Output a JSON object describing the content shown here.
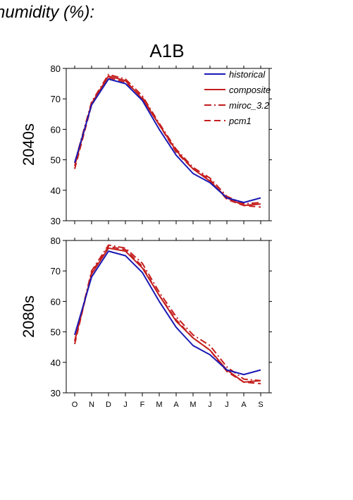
{
  "page": {
    "title": "humidity (%):"
  },
  "chart_data": [
    {
      "type": "line",
      "scenario": "A1B",
      "panel_label": "2040s",
      "categories": [
        "O",
        "N",
        "D",
        "J",
        "F",
        "M",
        "A",
        "M",
        "J",
        "J",
        "A",
        "S"
      ],
      "ylim": [
        30,
        80
      ],
      "yticks": [
        30,
        40,
        50,
        60,
        70,
        80
      ],
      "legend_placement": "top-right",
      "series": [
        {
          "name": "historical",
          "color": "#1a1ab4",
          "dash": "solid",
          "values": [
            49,
            68,
            76.5,
            75,
            69.5,
            60,
            51.5,
            45.5,
            42.5,
            37.5,
            36,
            37.5
          ]
        },
        {
          "name": "composite",
          "color": "#c41e1e",
          "dash": "solid",
          "values": [
            48,
            68.5,
            77.5,
            76,
            70,
            61.5,
            53,
            47,
            43,
            37.5,
            35,
            35.5
          ]
        },
        {
          "name": "miroc_3.2",
          "color": "#c41e1e",
          "dash": "dashdot",
          "values": [
            49,
            69,
            78,
            76.5,
            71,
            62,
            53.5,
            47.5,
            44,
            38,
            35.5,
            36
          ]
        },
        {
          "name": "pcm1",
          "color": "#c41e1e",
          "dash": "dash",
          "values": [
            47,
            68,
            77,
            75.5,
            70.5,
            61.5,
            52.5,
            47,
            43.5,
            37,
            35,
            34.5
          ]
        }
      ]
    },
    {
      "type": "line",
      "scenario": "A1B",
      "panel_label": "2080s",
      "categories": [
        "O",
        "N",
        "D",
        "J",
        "F",
        "M",
        "A",
        "M",
        "J",
        "J",
        "A",
        "S"
      ],
      "ylim": [
        30,
        80
      ],
      "yticks": [
        30,
        40,
        50,
        60,
        70,
        80
      ],
      "series": [
        {
          "name": "historical",
          "color": "#1a1ab4",
          "dash": "solid",
          "values": [
            49,
            68,
            76.5,
            75,
            69.5,
            60,
            51.5,
            45.5,
            42.5,
            37.5,
            36,
            37.5
          ]
        },
        {
          "name": "composite",
          "color": "#c41e1e",
          "dash": "solid",
          "values": [
            47,
            69,
            77.5,
            76.5,
            71,
            62,
            53.5,
            48,
            44,
            37.5,
            33.5,
            34
          ]
        },
        {
          "name": "miroc_3.2",
          "color": "#c41e1e",
          "dash": "dashdot",
          "values": [
            47,
            70,
            78.5,
            77.5,
            72.5,
            63,
            55,
            49,
            45.5,
            38.5,
            34.5,
            34
          ]
        },
        {
          "name": "pcm1",
          "color": "#c41e1e",
          "dash": "dash",
          "values": [
            46,
            69.5,
            78,
            77,
            71.5,
            62,
            54,
            48,
            44,
            37,
            33.5,
            33
          ]
        }
      ]
    }
  ]
}
